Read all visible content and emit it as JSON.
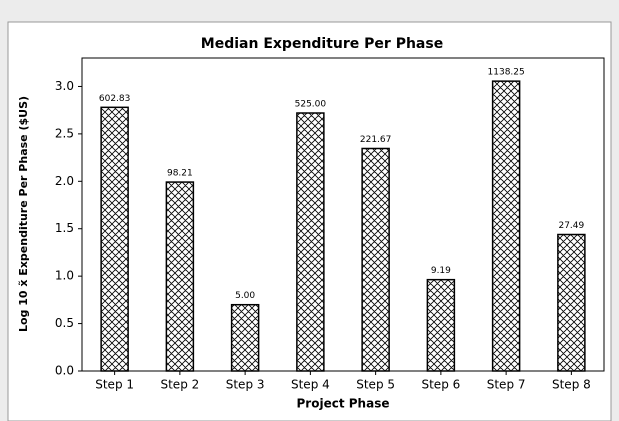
{
  "chart_data": {
    "type": "bar",
    "title": "Median Expenditure Per Phase",
    "xlabel": "Project Phase",
    "ylabel": "Log 10 x̃ Expenditure Per Phase ($US)",
    "categories": [
      "Step 1",
      "Step 2",
      "Step 3",
      "Step 4",
      "Step 5",
      "Step 6",
      "Step 7",
      "Step 8"
    ],
    "values": [
      2.78,
      1.992,
      0.699,
      2.72,
      2.346,
      0.963,
      3.056,
      1.439
    ],
    "value_labels": [
      "602.83",
      "98.21",
      "5.00",
      "525.00",
      "221.67",
      "9.19",
      "1138.25",
      "27.49"
    ],
    "color": "#000000",
    "ylim": [
      0,
      3.3
    ],
    "yticks": [
      {
        "value": 0,
        "label": "0.0"
      },
      0.5,
      {
        "value": 1,
        "label": "1.0"
      },
      1.5,
      {
        "value": 2,
        "label": "2.0"
      },
      2.5,
      {
        "value": 3,
        "label": "3.0"
      }
    ],
    "grid": false
  }
}
